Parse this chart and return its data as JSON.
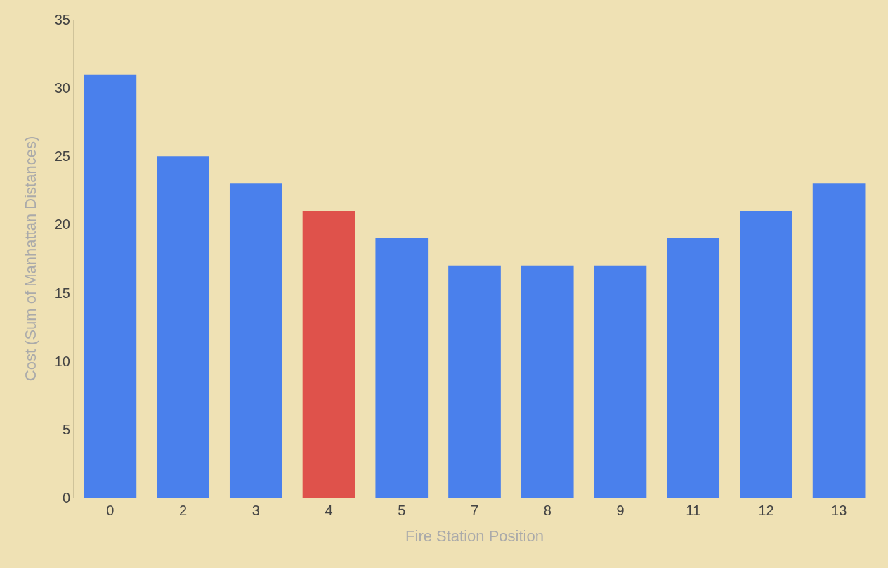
{
  "chart_data": {
    "type": "bar",
    "xlabel": "Fire Station Position",
    "ylabel": "Cost (Sum of Manhattan Distances)",
    "categories": [
      "0",
      "2",
      "3",
      "4",
      "5",
      "7",
      "8",
      "9",
      "11",
      "12",
      "13"
    ],
    "values": [
      31,
      25,
      23,
      21,
      19,
      17,
      17,
      17,
      19,
      21,
      23
    ],
    "colors": [
      "#4a80ec",
      "#4a80ec",
      "#4a80ec",
      "#df524b",
      "#4a80ec",
      "#4a80ec",
      "#4a80ec",
      "#4a80ec",
      "#4a80ec",
      "#4a80ec",
      "#4a80ec"
    ],
    "ylim": [
      0,
      35
    ],
    "yticks": [
      0,
      5,
      10,
      15,
      20,
      25,
      30,
      35
    ],
    "grid": false
  }
}
